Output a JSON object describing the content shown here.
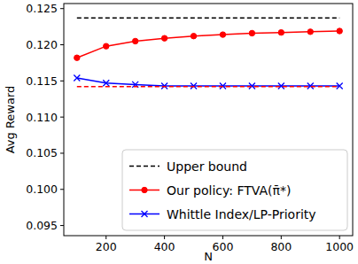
{
  "chart_data": {
    "type": "line",
    "x_label": "N",
    "y_label": "Avg Reward",
    "x": [
      100,
      200,
      300,
      400,
      500,
      600,
      700,
      800,
      900,
      1000
    ],
    "series": [
      {
        "name": "Upper bound",
        "color": "#000000",
        "line_style": "dashed",
        "marker": "none",
        "values": [
          0.1237,
          0.1237,
          0.1237,
          0.1237,
          0.1237,
          0.1237,
          0.1237,
          0.1237,
          0.1237,
          0.1237
        ]
      },
      {
        "name": "Our policy: FTVA(π̄*)",
        "color": "#ff0000",
        "line_style": "solid",
        "marker": "circle",
        "values": [
          0.1182,
          0.1198,
          0.1205,
          0.1209,
          0.1212,
          0.1214,
          0.1216,
          0.1217,
          0.1218,
          0.1219
        ]
      },
      {
        "name": "Whittle Index/LP-Priority",
        "color": "#0000ff",
        "line_style": "solid",
        "marker": "x",
        "values": [
          0.1154,
          0.1147,
          0.1145,
          0.1143,
          0.1143,
          0.1143,
          0.1143,
          0.1143,
          0.1143,
          0.1143
        ]
      },
      {
        "name": null,
        "color": "#ff0000",
        "line_style": "dashed",
        "marker": "none",
        "values": [
          0.1142,
          0.1142,
          0.1142,
          0.1142,
          0.1142,
          0.1142,
          0.1142,
          0.1142,
          0.1142,
          0.1142
        ]
      }
    ],
    "xlim": [
      55,
      1045
    ],
    "ylim": [
      0.0936,
      0.1257
    ],
    "xticks": [
      200,
      400,
      600,
      800,
      1000
    ],
    "yticks": [
      0.095,
      {
        "value": 0.1,
        "label": "0.100"
      },
      0.105,
      {
        "value": 0.11,
        "label": "0.110"
      },
      0.115,
      {
        "value": 0.12,
        "label": "0.120"
      },
      0.125
    ],
    "legend": "lower right",
    "grid": false
  }
}
